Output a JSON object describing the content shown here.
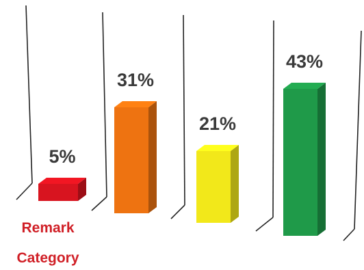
{
  "chart_data": {
    "type": "bar",
    "style": "3d-column",
    "categories": [
      "Remark Category",
      "",
      "",
      ""
    ],
    "values": [
      5,
      31,
      21,
      43
    ],
    "value_labels": [
      "5%",
      "31%",
      "21%",
      "43%"
    ],
    "series": [
      {
        "values": [
          5,
          31,
          21,
          43
        ]
      }
    ],
    "ylim": [
      0,
      50
    ],
    "grid": false,
    "legend": "none"
  },
  "colors": {
    "bars": [
      "#d8141f",
      "#ee7311",
      "#f2e81a",
      "#1f9a49"
    ],
    "category_label": "#d01f26",
    "value_label": "#3a3a3a"
  }
}
